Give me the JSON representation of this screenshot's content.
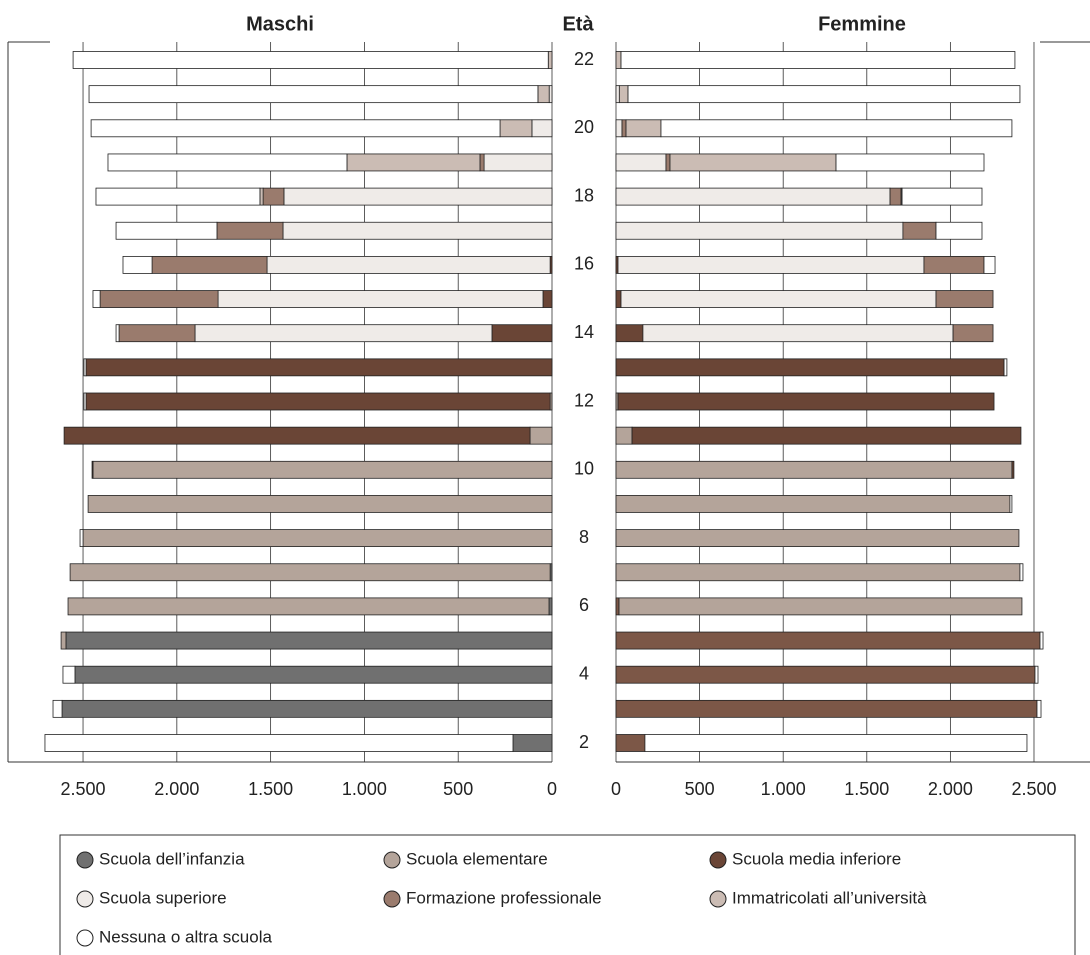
{
  "chart_data": {
    "type": "bar",
    "orientation": "horizontal",
    "stacked": true,
    "grid": true,
    "category_title": "Età",
    "categories": [
      "22",
      null,
      "20",
      null,
      "18",
      null,
      "16",
      null,
      "14",
      null,
      "12",
      null,
      "10",
      null,
      "8",
      null,
      "6",
      null,
      "4",
      null,
      "2"
    ],
    "panels": [
      {
        "title": "Maschi",
        "direction": "left",
        "xlim": [
          0,
          2900
        ],
        "xticks": [
          {
            "value": 2500,
            "label": "2.500"
          },
          {
            "value": 2000,
            "label": "2.000"
          },
          {
            "value": 1500,
            "label": "1.500"
          },
          {
            "value": 1000,
            "label": "1.000"
          },
          500,
          0
        ],
        "series": [
          {
            "name": "Scuola dell’infanzia",
            "color": "#707070",
            "values": [
              0,
              0,
              0,
              0,
              0,
              0,
              0,
              0,
              0,
              0,
              0,
              0,
              0,
              0,
              0,
              10,
              16,
              2591,
              2543,
              2612,
              208
            ]
          },
          {
            "name": "Scuola elementare",
            "color": "#b4a49a",
            "values": [
              0,
              0,
              0,
              0,
              0,
              0,
              0,
              0,
              0,
              0,
              10,
              117,
              2447,
              2473,
              2500,
              2559,
              2564,
              26,
              0,
              0,
              0
            ]
          },
          {
            "name": "Scuola media inferiore",
            "color": "#6a4536",
            "values": [
              0,
              0,
              0,
              0,
              0,
              0,
              10,
              48,
              320,
              2484,
              2474,
              2484,
              5,
              0,
              0,
              0,
              0,
              0,
              0,
              0,
              0
            ]
          },
          {
            "name": "Scuola superiore",
            "color": "#efebe8",
            "values": [
              0,
              15,
              107,
              362,
              1429,
              1434,
              1509,
              1732,
              1583,
              0,
              0,
              0,
              0,
              0,
              0,
              0,
              0,
              0,
              0,
              0,
              0
            ]
          },
          {
            "name": "Formazione professionale",
            "color": "#9a7b6d",
            "values": [
              0,
              0,
              0,
              22,
              111,
              352,
              613,
              629,
              405,
              0,
              0,
              0,
              0,
              0,
              0,
              0,
              0,
              0,
              0,
              0,
              0
            ]
          },
          {
            "name": "Immatricolati all’università",
            "color": "#cbbcb4",
            "values": [
              20,
              60,
              170,
              709,
              17,
              0,
              0,
              0,
              0,
              0,
              0,
              0,
              0,
              0,
              0,
              0,
              0,
              0,
              0,
              0,
              0
            ]
          },
          {
            "name": "Nessuna o altra scuola",
            "color": "#ffffff",
            "values": [
              2533,
              2393,
              2180,
              1274,
              874,
              538,
              155,
              38,
              16,
              11,
              11,
              0,
              0,
              0,
              16,
              0,
              0,
              0,
              64,
              48,
              2495
            ]
          }
        ]
      },
      {
        "title": "Femmine",
        "direction": "right",
        "xlim": [
          0,
          2835
        ],
        "xticks": [
          0,
          500,
          {
            "value": 1000,
            "label": "1.000"
          },
          {
            "value": 1500,
            "label": "1.500"
          },
          {
            "value": 2000,
            "label": "2.000"
          },
          {
            "value": 2500,
            "label": "2.500"
          }
        ],
        "series": [
          {
            "name": "Scuola dell’infanzia",
            "color": "#7c5747",
            "values": [
              0,
              0,
              0,
              0,
              0,
              0,
              0,
              0,
              0,
              0,
              0,
              0,
              0,
              0,
              0,
              0,
              18,
              2536,
              2506,
              2518,
              173
            ]
          },
          {
            "name": "Scuola elementare",
            "color": "#b4a49a",
            "values": [
              0,
              0,
              0,
              0,
              0,
              0,
              0,
              0,
              0,
              0,
              12,
              96,
              2368,
              2356,
              2410,
              2416,
              2410,
              0,
              0,
              0,
              0
            ]
          },
          {
            "name": "Scuola media inferiore",
            "color": "#6a4536",
            "values": [
              0,
              0,
              0,
              0,
              0,
              0,
              12,
              30,
              161,
              2321,
              2249,
              2326,
              12,
              0,
              0,
              0,
              0,
              0,
              0,
              0,
              0
            ]
          },
          {
            "name": "Scuola superiore",
            "color": "#efebe8",
            "values": [
              0,
              20,
              36,
              299,
              1639,
              1716,
              1830,
              1884,
              1855,
              0,
              0,
              0,
              0,
              0,
              0,
              0,
              0,
              0,
              0,
              0,
              0
            ]
          },
          {
            "name": "Formazione professionale",
            "color": "#9a7b6d",
            "values": [
              0,
              0,
              24,
              24,
              66,
              198,
              359,
              341,
              239,
              0,
              0,
              0,
              0,
              0,
              0,
              0,
              0,
              0,
              0,
              0,
              0
            ]
          },
          {
            "name": "Immatricolati all’università",
            "color": "#cbbcb4",
            "values": [
              30,
              52,
              209,
              993,
              6,
              0,
              0,
              0,
              0,
              0,
              0,
              0,
              0,
              0,
              0,
              0,
              0,
              0,
              0,
              0,
              0
            ]
          },
          {
            "name": "Nessuna o altra scuola",
            "color": "#ffffff",
            "values": [
              2356,
              2344,
              2099,
              885,
              478,
              275,
              66,
              0,
              0,
              17,
              0,
              0,
              0,
              12,
              0,
              18,
              0,
              18,
              18,
              24,
              2285
            ]
          }
        ]
      }
    ]
  }
}
